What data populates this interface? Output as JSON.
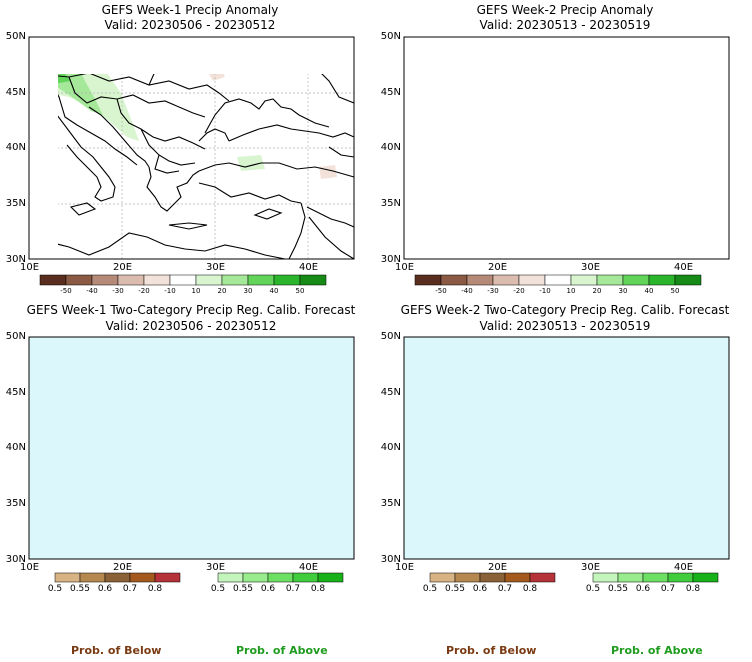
{
  "panels": [
    {
      "title": "GEFS Week-1 Precip Anomaly",
      "valid": "Valid: 20230506 - 20230512"
    },
    {
      "title": "GEFS Week-2 Precip Anomaly",
      "valid": "Valid: 20230513 - 20230519"
    },
    {
      "title": "GEFS Week-1 Two-Category Precip Reg. Calib. Forecast",
      "valid": "Valid: 20230506 - 20230512"
    },
    {
      "title": "GEFS Week-2 Two-Category Precip Reg. Calib. Forecast",
      "valid": "Valid: 20230513 - 20230519"
    }
  ],
  "map_axes": {
    "lat_labels": [
      "50N",
      "45N",
      "40N",
      "35N",
      "30N"
    ],
    "lon_labels": [
      "10E",
      "20E",
      "30E",
      "40E"
    ]
  },
  "anomaly_colorbar": {
    "labels": [
      "-50",
      "-40",
      "-30",
      "-20",
      "-10",
      "10",
      "20",
      "30",
      "40",
      "50"
    ],
    "colors": [
      "#5a2e1e",
      "#8b5a44",
      "#b58a78",
      "#dbbcae",
      "#f2e2da",
      "#ffffff",
      "#d8f5d0",
      "#a6e89a",
      "#62d45a",
      "#2ab52a",
      "#168a16"
    ]
  },
  "prob_below_colorbar": {
    "labels": [
      "0.5",
      "0.55",
      "0.6",
      "0.7",
      "0.8"
    ],
    "colors": [
      "#d8b485",
      "#b58850",
      "#8b6238",
      "#a45a1c",
      "#b5323a"
    ]
  },
  "prob_above_colorbar": {
    "labels": [
      "0.5",
      "0.55",
      "0.6",
      "0.7",
      "0.8"
    ],
    "colors": [
      "#c4f5bc",
      "#98ec8e",
      "#6de064",
      "#40cc3c",
      "#19b119"
    ]
  },
  "legend": {
    "prob_below": "Prob. of Below",
    "prob_above": "Prob. of Above"
  },
  "colors": {
    "sea": "#dbf7fb",
    "land_other": "#e9e9e9",
    "map_lines": "#000000",
    "grid_lines": "#b0b0b0",
    "below_text": "#7a3b14",
    "above_text": "#1f9b1f"
  }
}
